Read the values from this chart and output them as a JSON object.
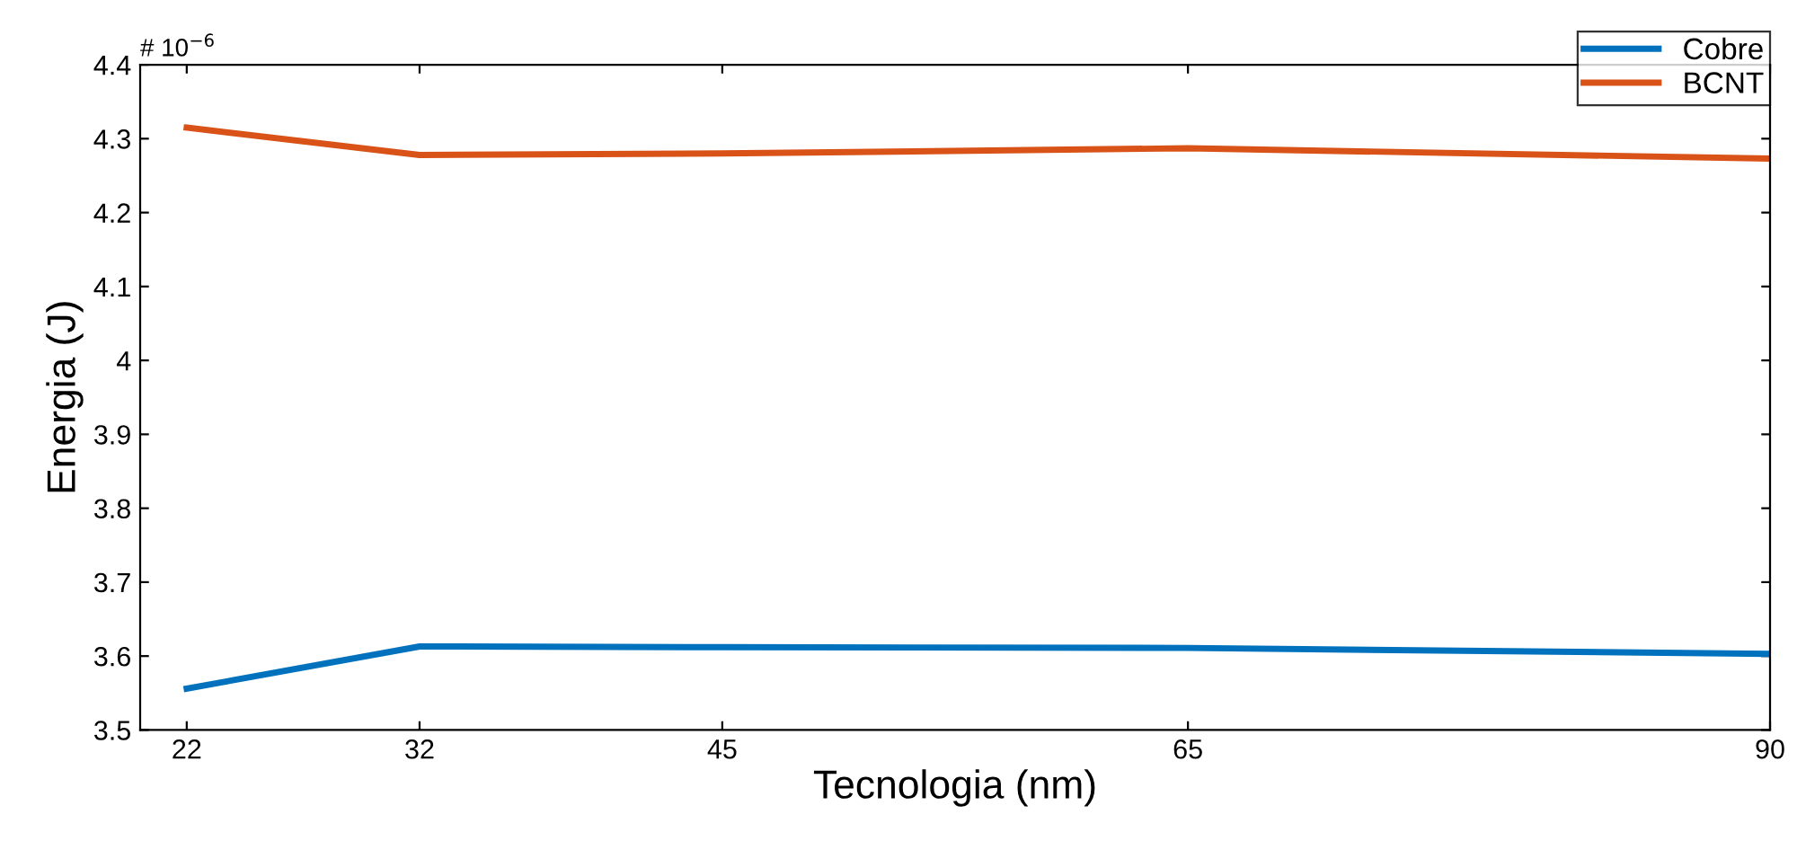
{
  "chart_data": {
    "type": "line",
    "xlabel": "Tecnologia (nm)",
    "ylabel": "Energia (J)",
    "annotations": [
      "# 10$^{−6}$"
    ],
    "x": [
      22,
      32,
      45,
      65,
      90
    ],
    "series": [
      {
        "name": "Cobre",
        "color": "#0072bd",
        "values": [
          3.556,
          3.613,
          3.612,
          3.611,
          3.603
        ]
      },
      {
        "name": "BCNT",
        "color": "#d95319",
        "values": [
          4.315,
          4.278,
          4.28,
          4.287,
          4.273
        ]
      }
    ],
    "xlim": [
      20,
      90
    ],
    "xticks": [
      22,
      32,
      45,
      65,
      90
    ],
    "ylim": [
      3.5,
      4.4
    ],
    "yticks": [
      3.5,
      3.6,
      3.7,
      3.8,
      3.9,
      4,
      4.1,
      4.2,
      4.3,
      4.4
    ],
    "grid": false,
    "legend": "top right",
    "marker": "none",
    "line_style": "solid"
  }
}
